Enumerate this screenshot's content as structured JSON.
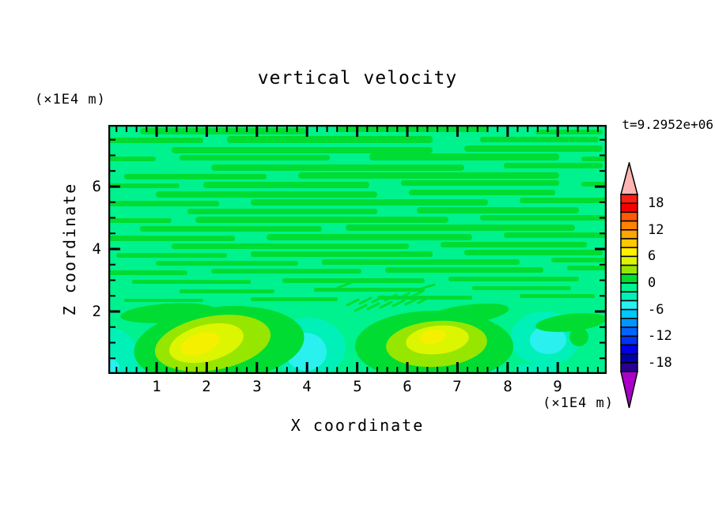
{
  "chart_data": {
    "type": "filled_contour",
    "title": "vertical velocity",
    "time_annotation": "t=9.2952e+06",
    "x_axis": {
      "label": "X coordinate",
      "units": "(×1E4 m)",
      "range": [
        0,
        9.97
      ],
      "major_tick_values": [
        1,
        2,
        3,
        4,
        5,
        6,
        7,
        8,
        9
      ],
      "minor_tick_step": 0.2
    },
    "y_axis": {
      "label": "Z coordinate",
      "units": "(×1E4 m)",
      "range": [
        0,
        7.97
      ],
      "major_tick_values": [
        2,
        4,
        6
      ],
      "minor_tick_step": 0.5
    },
    "x_ticks": [
      "1",
      "2",
      "3",
      "4",
      "5",
      "6",
      "7",
      "8",
      "9"
    ],
    "y_ticks": [
      "6",
      "4",
      "2"
    ],
    "colorbar": {
      "labels": [
        "18",
        "12",
        "6",
        "0",
        "-6",
        "-12",
        "-18"
      ],
      "levels": [
        -20,
        -18,
        -16,
        -14,
        -12,
        -10,
        -8,
        -6,
        -4,
        -2,
        0,
        2,
        4,
        6,
        8,
        10,
        12,
        14,
        16,
        18,
        20
      ],
      "box_value_step": 2,
      "colors_top_to_bottom": [
        "#ff1e14",
        "#f50000",
        "#ff5a00",
        "#ff8200",
        "#ffa500",
        "#ffc800",
        "#fff000",
        "#dcf500",
        "#96e600",
        "#00dc32",
        "#00f28e",
        "#00f0b9",
        "#2af0f0",
        "#00c8ff",
        "#0096ff",
        "#0064ff",
        "#0032f5",
        "#0000e6",
        "#0000aa",
        "#280096"
      ],
      "over_color": "#ffb4b4",
      "under_color": "#aa00c8"
    },
    "palette": {
      "background_minus2_0": "#00f28e",
      "green_0_2": "#00dc32",
      "chartreuse_2_4": "#96e600",
      "yellow_green_4_6": "#dcf500",
      "yellow_6_8": "#f5f000",
      "aqua_minus4_minus2": "#00f0b9",
      "cyan_minus6_minus4": "#2af0f0"
    },
    "features": {
      "description": "Mostly near-zero vertical velocity: streaky horizontal bands of 0..2 on a -2..0 background for z=2..8; convective cells below z=2.",
      "updrafts": [
        {
          "x": 1.85,
          "z": 1.0,
          "peak_range": "6..8"
        },
        {
          "x": 6.4,
          "z": 1.1,
          "peak_range": "6..8"
        }
      ],
      "downdrafts": [
        {
          "x": 0.1,
          "z": 0.6,
          "min_range": "-6..-4"
        },
        {
          "x": 4.0,
          "z": 0.8,
          "min_range": "-6..-4"
        },
        {
          "x": 8.8,
          "z": 1.1,
          "min_range": "-6..-4"
        }
      ]
    }
  }
}
